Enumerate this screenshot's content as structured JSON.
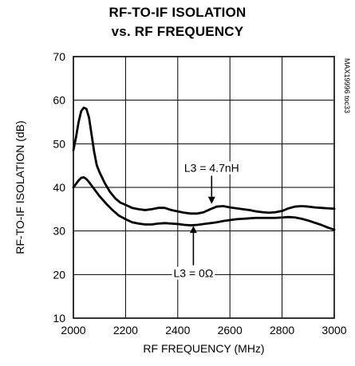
{
  "chart_data": {
    "type": "line",
    "title": "RF-TO-IF ISOLATION",
    "subtitle": "vs. RF FREQUENCY",
    "xlabel": "RF FREQUENCY (MHz)",
    "ylabel": "RF-TO-IF ISOLATION (dB)",
    "xlim": [
      2000,
      3000
    ],
    "ylim": [
      10,
      70
    ],
    "xticks": [
      2000,
      2200,
      2400,
      2600,
      2800,
      3000
    ],
    "yticks": [
      10,
      20,
      30,
      40,
      50,
      60,
      70
    ],
    "grid": true,
    "legend": "none",
    "watermark": "MAX19996 toc33",
    "series": [
      {
        "name": "L3 = 4.7nH",
        "x": [
          2000,
          2010,
          2020,
          2030,
          2040,
          2050,
          2060,
          2070,
          2080,
          2090,
          2100,
          2120,
          2140,
          2160,
          2180,
          2200,
          2225,
          2250,
          2275,
          2300,
          2325,
          2350,
          2375,
          2400,
          2425,
          2450,
          2475,
          2500,
          2525,
          2550,
          2575,
          2600,
          2625,
          2650,
          2675,
          2700,
          2725,
          2750,
          2775,
          2800,
          2825,
          2850,
          2875,
          2900,
          2925,
          2950,
          2975,
          3000
        ],
        "y": [
          48.5,
          51.5,
          55,
          57.5,
          58.3,
          58,
          56,
          52,
          48,
          45,
          43.5,
          41,
          39,
          37.5,
          36.5,
          36,
          35.3,
          35,
          34.8,
          35,
          35.3,
          35.3,
          34.8,
          34.5,
          34.2,
          34,
          34,
          34.3,
          35,
          35.6,
          35.7,
          35.4,
          35.2,
          35,
          34.8,
          34.5,
          34.3,
          34.2,
          34.3,
          34.6,
          35.2,
          35.6,
          35.7,
          35.6,
          35.4,
          35.3,
          35.2,
          35.1
        ]
      },
      {
        "name": "L3 = 0Ω",
        "x": [
          2000,
          2010,
          2020,
          2030,
          2040,
          2050,
          2060,
          2070,
          2080,
          2090,
          2100,
          2125,
          2150,
          2175,
          2200,
          2225,
          2250,
          2275,
          2300,
          2325,
          2350,
          2375,
          2400,
          2425,
          2450,
          2475,
          2500,
          2525,
          2550,
          2575,
          2600,
          2625,
          2650,
          2675,
          2700,
          2725,
          2750,
          2775,
          2800,
          2825,
          2850,
          2875,
          2900,
          2925,
          2950,
          2975,
          3000
        ],
        "y": [
          40,
          40.8,
          41.6,
          42.2,
          42.3,
          41.9,
          41.2,
          40.4,
          39.6,
          38.8,
          38,
          36.3,
          34.8,
          33.5,
          32.7,
          32,
          31.7,
          31.5,
          31.5,
          31.7,
          31.8,
          31.7,
          31.6,
          31.4,
          31.3,
          31.4,
          31.6,
          31.8,
          32,
          32.3,
          32.5,
          32.7,
          32.8,
          32.9,
          33,
          33,
          33,
          33,
          33.1,
          33.2,
          33.1,
          32.8,
          32.4,
          31.9,
          31.4,
          30.8,
          30.3
        ]
      }
    ],
    "annotations": [
      {
        "text": "L3 = 4.7nH",
        "x": 2530,
        "y": 44.5,
        "arrow_to": [
          2530,
          36.2
        ]
      },
      {
        "text": "L3 = 0Ω",
        "x": 2460,
        "y": 20.3,
        "arrow_to": [
          2460,
          31.2
        ]
      }
    ]
  }
}
